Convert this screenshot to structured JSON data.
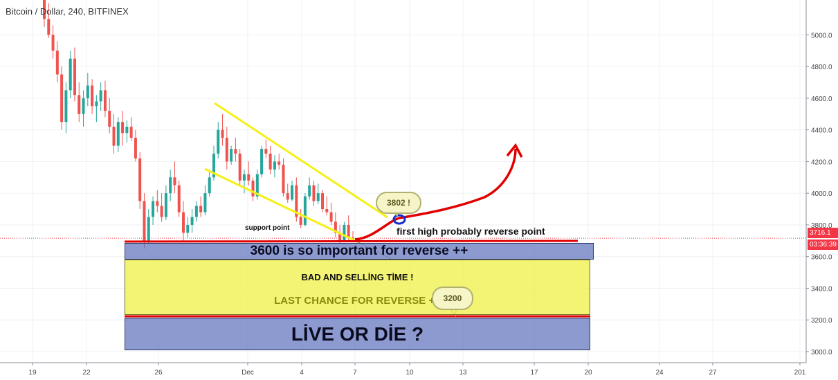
{
  "symbol_title": "Bitcoin / Dollar, 240, BITFINEX",
  "colors": {
    "up": "#26a69a",
    "down": "#ef5350",
    "grid": "#eef0f4",
    "channel": "#f5f016",
    "arrow": "#e00000",
    "support_line": "#e00000",
    "price_tag": "#f23645"
  },
  "chart_data": {
    "type": "candlestick",
    "y_axis": {
      "range": [
        2930,
        5220
      ],
      "ticks": [
        "3000.0",
        "3200.0",
        "3400.0",
        "3600.0",
        "3800.0",
        "4000.0",
        "4200.0",
        "4400.0",
        "4600.0",
        "4800.0",
        "5000.0"
      ]
    },
    "x_axis": {
      "labels": [
        "19",
        "22",
        "26",
        "Dec",
        "4",
        "7",
        "10",
        "13",
        "17",
        "20",
        "24",
        "27",
        "201"
      ]
    },
    "last_price": "3716.1",
    "countdown": "03:36:39",
    "candles_ohlc_approx": [
      [
        5250,
        5270,
        5050,
        5100
      ],
      [
        5100,
        5200,
        4980,
        5000
      ],
      [
        5000,
        5060,
        4850,
        4900
      ],
      [
        4900,
        4960,
        4700,
        4750
      ],
      [
        4750,
        4800,
        4400,
        4450
      ],
      [
        4450,
        4700,
        4380,
        4650
      ],
      [
        4650,
        4900,
        4600,
        4850
      ],
      [
        4850,
        4920,
        4580,
        4620
      ],
      [
        4620,
        4700,
        4450,
        4500
      ],
      [
        4500,
        4650,
        4420,
        4600
      ],
      [
        4600,
        4760,
        4550,
        4680
      ],
      [
        4680,
        4720,
        4500,
        4550
      ],
      [
        4550,
        4620,
        4450,
        4580
      ],
      [
        4580,
        4700,
        4520,
        4650
      ],
      [
        4650,
        4710,
        4480,
        4520
      ],
      [
        4520,
        4600,
        4380,
        4420
      ],
      [
        4420,
        4500,
        4250,
        4300
      ],
      [
        4300,
        4480,
        4260,
        4450
      ],
      [
        4450,
        4520,
        4300,
        4380
      ],
      [
        4380,
        4460,
        4320,
        4420
      ],
      [
        4420,
        4480,
        4330,
        4350
      ],
      [
        4350,
        4400,
        4200,
        4220
      ],
      [
        4220,
        4260,
        3900,
        3950
      ],
      [
        3950,
        4000,
        3650,
        3700
      ],
      [
        3700,
        3900,
        3680,
        3850
      ],
      [
        3850,
        3980,
        3800,
        3950
      ],
      [
        3950,
        4020,
        3880,
        3920
      ],
      [
        3920,
        4000,
        3820,
        3850
      ],
      [
        3850,
        4050,
        3830,
        4000
      ],
      [
        4000,
        4150,
        3950,
        4100
      ],
      [
        4100,
        4200,
        4000,
        4050
      ],
      [
        4050,
        4080,
        3850,
        3880
      ],
      [
        3880,
        3950,
        3700,
        3750
      ],
      [
        3750,
        3850,
        3720,
        3800
      ],
      [
        3800,
        3900,
        3750,
        3850
      ],
      [
        3850,
        3950,
        3820,
        3920
      ],
      [
        3920,
        3980,
        3850,
        3880
      ],
      [
        3880,
        4050,
        3860,
        4000
      ],
      [
        4000,
        4150,
        3980,
        4100
      ],
      [
        4100,
        4300,
        4080,
        4250
      ],
      [
        4250,
        4450,
        4220,
        4400
      ],
      [
        4400,
        4500,
        4300,
        4350
      ],
      [
        4350,
        4420,
        4150,
        4200
      ],
      [
        4200,
        4300,
        4180,
        4280
      ],
      [
        4280,
        4350,
        4200,
        4250
      ],
      [
        4250,
        4280,
        4050,
        4080
      ],
      [
        4080,
        4150,
        4000,
        4120
      ],
      [
        4120,
        4200,
        4050,
        4080
      ],
      [
        4080,
        4100,
        3950,
        3980
      ],
      [
        3980,
        4150,
        3960,
        4120
      ],
      [
        4120,
        4300,
        4100,
        4280
      ],
      [
        4280,
        4340,
        4220,
        4250
      ],
      [
        4250,
        4300,
        4120,
        4150
      ],
      [
        4150,
        4240,
        4100,
        4200
      ],
      [
        4200,
        4250,
        4150,
        4180
      ],
      [
        4180,
        4220,
        3980,
        4000
      ],
      [
        4000,
        4060,
        3940,
        3960
      ],
      [
        3960,
        4080,
        3950,
        4050
      ],
      [
        4050,
        4100,
        3820,
        3850
      ],
      [
        3850,
        3900,
        3780,
        3800
      ],
      [
        3800,
        4000,
        3790,
        3980
      ],
      [
        3980,
        4100,
        3960,
        4050
      ],
      [
        4050,
        4080,
        3920,
        3950
      ],
      [
        3950,
        4060,
        3930,
        4000
      ],
      [
        4000,
        4020,
        3880,
        3900
      ],
      [
        3900,
        3980,
        3860,
        3880
      ],
      [
        3880,
        3940,
        3800,
        3820
      ],
      [
        3820,
        3880,
        3720,
        3750
      ],
      [
        3750,
        3800,
        3680,
        3700
      ],
      [
        3700,
        3820,
        3690,
        3800
      ],
      [
        3800,
        3860,
        3700,
        3720
      ],
      [
        3720,
        3760,
        3690,
        3716
      ]
    ]
  },
  "annotations": {
    "support_point": "support point",
    "first_high": "first high probably reverse point",
    "callout_3802": "3802 !",
    "callout_3200": "3200",
    "box_3600": "3600 is so important for reverse ++",
    "bad_selling": "BAD AND SELLİNG TİME !",
    "last_chance": "LAST CHANCE FOR REVERSE ++",
    "live_or_die": "LİVE OR DİE ?"
  }
}
